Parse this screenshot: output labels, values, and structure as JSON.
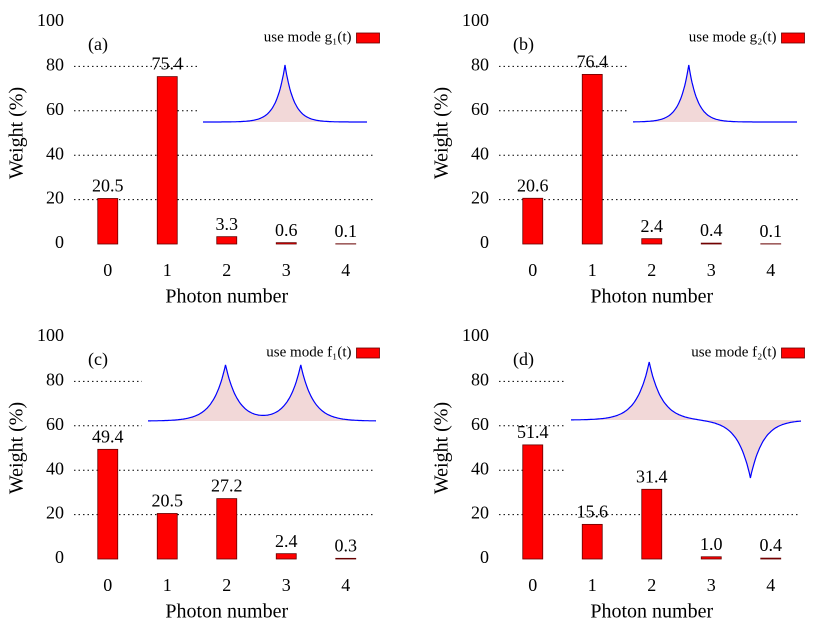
{
  "chart_data": [
    {
      "type": "bar",
      "panel_label": "(a)",
      "xlabel": "Photon number",
      "ylabel": "Weight (%)",
      "categories": [
        "0",
        "1",
        "2",
        "3",
        "4"
      ],
      "series": [
        {
          "name": "use mode g₁(t)",
          "color": "#ff0000",
          "values": [
            20.5,
            75.4,
            3.3,
            0.6,
            0.1
          ]
        }
      ],
      "ylim": [
        0,
        100
      ],
      "yticks": [
        0,
        20,
        40,
        60,
        80,
        100
      ],
      "grid": true,
      "legend": "upper right"
    },
    {
      "type": "bar",
      "panel_label": "(b)",
      "xlabel": "Photon number",
      "ylabel": "Weight (%)",
      "categories": [
        "0",
        "1",
        "2",
        "3",
        "4"
      ],
      "series": [
        {
          "name": "use mode g₂(t)",
          "color": "#ff0000",
          "values": [
            20.6,
            76.4,
            2.4,
            0.4,
            0.1
          ]
        }
      ],
      "ylim": [
        0,
        100
      ],
      "yticks": [
        0,
        20,
        40,
        60,
        80,
        100
      ],
      "grid": true,
      "legend": "upper right"
    },
    {
      "type": "bar",
      "panel_label": "(c)",
      "xlabel": "Photon number",
      "ylabel": "Weight (%)",
      "categories": [
        "0",
        "1",
        "2",
        "3",
        "4"
      ],
      "series": [
        {
          "name": "use mode f₁(t)",
          "color": "#ff0000",
          "values": [
            49.4,
            20.5,
            27.2,
            2.4,
            0.3
          ]
        }
      ],
      "ylim": [
        0,
        100
      ],
      "yticks": [
        0,
        20,
        40,
        60,
        80,
        100
      ],
      "grid": true,
      "legend": "upper right"
    },
    {
      "type": "bar",
      "panel_label": "(d)",
      "xlabel": "Photon number",
      "ylabel": "Weight (%)",
      "categories": [
        "0",
        "1",
        "2",
        "3",
        "4"
      ],
      "series": [
        {
          "name": "use mode f₂(t)",
          "color": "#ff0000",
          "values": [
            51.4,
            15.6,
            31.4,
            1.0,
            0.4
          ],
          "value_labels": [
            "51.4",
            "15.6",
            "31.4",
            "1.0",
            "0.4"
          ]
        }
      ],
      "ylim": [
        0,
        100
      ],
      "yticks": [
        0,
        20,
        40,
        60,
        80,
        100
      ],
      "grid": true,
      "legend": "upper right"
    }
  ]
}
